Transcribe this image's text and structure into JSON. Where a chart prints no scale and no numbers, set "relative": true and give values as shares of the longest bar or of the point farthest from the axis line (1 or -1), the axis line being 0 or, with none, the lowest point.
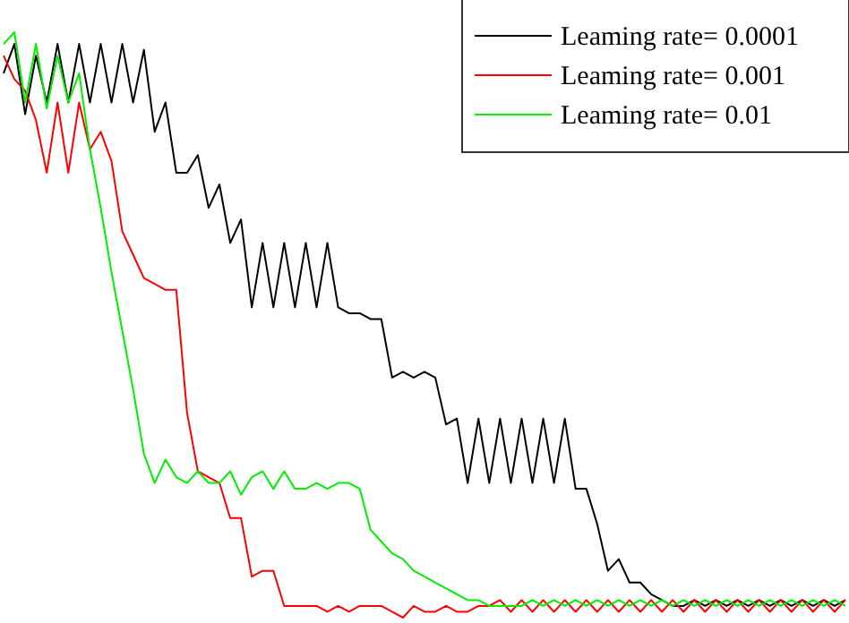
{
  "chart_data": {
    "type": "line",
    "relative": true,
    "categories": [
      null,
      null,
      null,
      null,
      null,
      null,
      null,
      null,
      null,
      null,
      null,
      null,
      null,
      null,
      null,
      null,
      null,
      null,
      null,
      null,
      null,
      null,
      null,
      null,
      null,
      null,
      null,
      null,
      null,
      null,
      null,
      null,
      null,
      null,
      null,
      null,
      null,
      null,
      null,
      null,
      null,
      null,
      null,
      null,
      null,
      null,
      null,
      null,
      null,
      null,
      null,
      null,
      null,
      null,
      null,
      null,
      null,
      null,
      null,
      null,
      null,
      null,
      null,
      null,
      null,
      null,
      null,
      null,
      null,
      null,
      null,
      null,
      null,
      null,
      null,
      null,
      null,
      null,
      null
    ],
    "legend": "top right",
    "marker": "none",
    "line_style": "solid",
    "series": [
      {
        "name": "Leaming rate= 0.0001",
        "color": "#000000",
        "values": [
          0.93,
          0.98,
          0.86,
          0.96,
          0.88,
          0.98,
          0.88,
          0.98,
          0.88,
          0.98,
          0.88,
          0.98,
          0.88,
          0.97,
          0.83,
          0.88,
          0.76,
          0.76,
          0.79,
          0.7,
          0.74,
          0.64,
          0.68,
          0.53,
          0.64,
          0.53,
          0.64,
          0.53,
          0.64,
          0.53,
          0.64,
          0.53,
          0.52,
          0.52,
          0.51,
          0.51,
          0.41,
          0.42,
          0.41,
          0.42,
          0.41,
          0.33,
          0.34,
          0.23,
          0.34,
          0.23,
          0.34,
          0.23,
          0.34,
          0.23,
          0.34,
          0.23,
          0.34,
          0.22,
          0.22,
          0.16,
          0.08,
          0.1,
          0.06,
          0.06,
          0.04,
          0.03,
          0.02,
          0.02,
          0.03,
          0.02,
          0.03,
          0.02,
          0.03,
          0.02,
          0.03,
          0.02,
          0.03,
          0.02,
          0.03,
          0.02,
          0.03,
          0.02,
          0.03
        ]
      },
      {
        "name": "Leaming rate= 0.001",
        "color": "#ff0000",
        "values": [
          0.96,
          0.92,
          0.9,
          0.85,
          0.76,
          0.88,
          0.76,
          0.88,
          0.8,
          0.83,
          0.78,
          0.66,
          0.62,
          0.58,
          0.57,
          0.56,
          0.56,
          0.35,
          0.25,
          0.24,
          0.23,
          0.17,
          0.17,
          0.07,
          0.08,
          0.08,
          0.02,
          0.02,
          0.02,
          0.02,
          0.01,
          0.02,
          0.01,
          0.02,
          0.02,
          0.02,
          0.01,
          0,
          0.02,
          0.01,
          0.01,
          0.02,
          0.01,
          0.01,
          0.02,
          0.02,
          0.03,
          0.01,
          0.03,
          0.01,
          0.03,
          0.01,
          0.03,
          0.01,
          0.03,
          0.01,
          0.03,
          0.01,
          0.03,
          0.01,
          0.03,
          0.01,
          0.03,
          0.01,
          0.03,
          0.01,
          0.03,
          0.01,
          0.03,
          0.01,
          0.03,
          0.01,
          0.03,
          0.01,
          0.03,
          0.01,
          0.03,
          0.01,
          0.03
        ]
      },
      {
        "name": "Leaming rate= 0.01",
        "color": "#00ee00",
        "values": [
          0.98,
          1.0,
          0.88,
          0.98,
          0.87,
          0.96,
          0.88,
          0.93,
          0.8,
          0.7,
          0.59,
          0.49,
          0.39,
          0.28,
          0.23,
          0.27,
          0.24,
          0.23,
          0.25,
          0.23,
          0.23,
          0.25,
          0.21,
          0.24,
          0.25,
          0.22,
          0.25,
          0.22,
          0.22,
          0.23,
          0.22,
          0.23,
          0.23,
          0.22,
          0.15,
          0.13,
          0.11,
          0.1,
          0.08,
          0.07,
          0.06,
          0.05,
          0.04,
          0.03,
          0.03,
          0.02,
          0.02,
          0.02,
          0.02,
          0.03,
          0.02,
          0.03,
          0.02,
          0.03,
          0.02,
          0.03,
          0.02,
          0.03,
          0.02,
          0.03,
          0.02,
          0.03,
          0.02,
          0.03,
          0.02,
          0.03,
          0.02,
          0.03,
          0.02,
          0.03,
          0.02,
          0.03,
          0.02,
          0.03,
          0.02,
          0.03,
          0.02,
          0.03,
          0.02
        ]
      }
    ]
  }
}
